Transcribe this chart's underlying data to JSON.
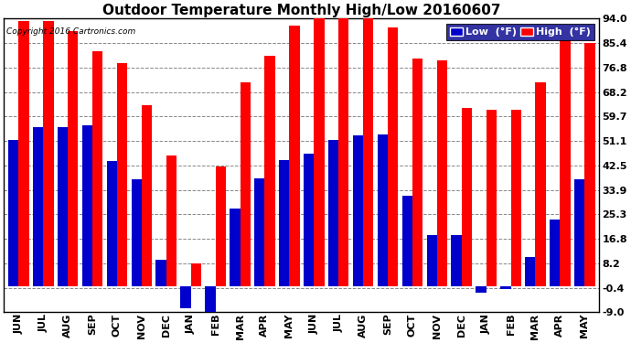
{
  "title": "Outdoor Temperature Monthly High/Low 20160607",
  "copyright": "Copyright 2016 Cartronics.com",
  "legend_low": "Low  (°F)",
  "legend_high": "High  (°F)",
  "months": [
    "JUN",
    "JUL",
    "AUG",
    "SEP",
    "OCT",
    "NOV",
    "DEC",
    "JAN",
    "FEB",
    "MAR",
    "APR",
    "MAY",
    "JUN",
    "JUL",
    "AUG",
    "SEP",
    "OCT",
    "NOV",
    "DEC",
    "JAN",
    "FEB",
    "MAR",
    "APR",
    "MAY"
  ],
  "high_values": [
    93.0,
    93.0,
    89.5,
    82.5,
    78.5,
    63.5,
    46.0,
    8.0,
    42.0,
    71.5,
    81.0,
    91.5,
    94.0,
    94.5,
    94.5,
    91.0,
    80.0,
    79.5,
    62.5,
    62.0,
    62.0,
    71.5,
    86.5,
    85.5
  ],
  "low_values": [
    51.5,
    56.0,
    56.0,
    56.5,
    44.0,
    37.5,
    9.5,
    -7.5,
    -9.0,
    27.5,
    38.0,
    44.5,
    46.5,
    51.5,
    53.0,
    53.5,
    32.0,
    18.0,
    18.0,
    -2.0,
    -1.0,
    10.5,
    23.5,
    37.5
  ],
  "bar_color_high": "#FF0000",
  "bar_color_low": "#0000CC",
  "background_color": "#FFFFFF",
  "plot_bg_color": "#FFFFFF",
  "grid_color": "#888888",
  "yticks": [
    94.0,
    85.4,
    76.8,
    68.2,
    59.7,
    51.1,
    42.5,
    33.9,
    25.3,
    16.8,
    8.2,
    -0.4,
    -9.0
  ],
  "ylim": [
    -9.0,
    94.0
  ],
  "bar_width": 0.42,
  "title_fontsize": 11,
  "tick_fontsize": 8,
  "legend_fontsize": 8,
  "figwidth": 6.9,
  "figheight": 3.75,
  "dpi": 100
}
